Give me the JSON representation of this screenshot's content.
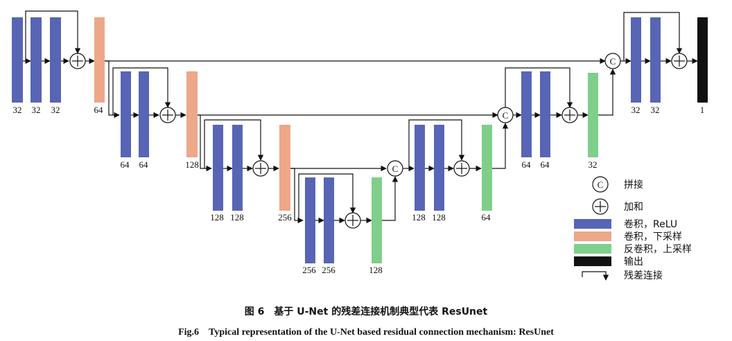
{
  "colors": {
    "conv": "#5865b5",
    "down": "#eda789",
    "up": "#7fcf8a",
    "output": "#111111"
  },
  "legend": {
    "concat_symbol": "C",
    "concat": "拼接",
    "add": "加和",
    "conv_relu": "卷积，ReLU",
    "conv_down": "卷积，下采样",
    "deconv_up": "反卷积，上采样",
    "output": "输出",
    "residual": "残差连接"
  },
  "labels": {
    "enc1": [
      "32",
      "32",
      "32"
    ],
    "down1": "64",
    "enc2": [
      "64",
      "64"
    ],
    "down2": "128",
    "enc3": [
      "128",
      "128"
    ],
    "down3": "256",
    "bottom": [
      "256",
      "256"
    ],
    "up1": "128",
    "dec3": [
      "128",
      "128"
    ],
    "up2": "64",
    "dec2": [
      "64",
      "64"
    ],
    "up3": "32",
    "dec1": [
      "32",
      "32"
    ],
    "out": "1"
  },
  "caption": {
    "cn": "图 6　基于 U-Net 的残差连接机制典型代表 ResUnet",
    "en": "Fig.6　Typical representation of the U-Net based residual connection mechanism: ResUnet"
  }
}
